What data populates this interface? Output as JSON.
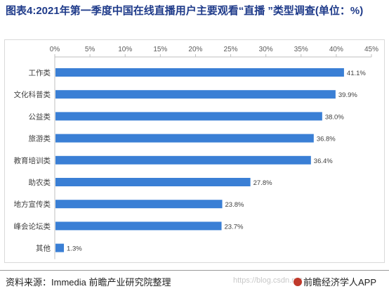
{
  "title": "图表4:2021年第一季度中国在线直播用户主要观看“直播 ”类型调查(单位：%)",
  "footer": {
    "source": "资料来源：Immedia 前瞻产业研究院整理",
    "watermark": "https://blog.csdn.net",
    "brand": "前瞻经济学人APP"
  },
  "colors": {
    "bar": "#3a7fd5",
    "title": "#1f3b8a",
    "axis": "#bfbfbf"
  },
  "chart_data": {
    "type": "bar",
    "orientation": "horizontal",
    "title": "图表4:2021年第一季度中国在线直播用户主要观看“直播 ”类型调查(单位：%)",
    "categories": [
      "工作类",
      "文化科普类",
      "公益类",
      "旅游类",
      "教育培训类",
      "助农类",
      "地方宣传类",
      "峰会论坛类",
      "其他"
    ],
    "values": [
      41.1,
      39.9,
      38.0,
      36.8,
      36.4,
      27.8,
      23.8,
      23.7,
      1.3
    ],
    "data_labels": [
      "41.1%",
      "39.9%",
      "38.0%",
      "36.8%",
      "36.4%",
      "27.8%",
      "23.8%",
      "23.7%",
      "1.3%"
    ],
    "xlim": [
      0,
      45
    ],
    "ticks": [
      0,
      5,
      10,
      15,
      20,
      25,
      30,
      35,
      40,
      45
    ],
    "tick_labels": [
      "0%",
      "5%",
      "10%",
      "15%",
      "20%",
      "25%",
      "30%",
      "35%",
      "40%",
      "45%"
    ],
    "axis_position": "top",
    "grid": false,
    "legend": false
  }
}
